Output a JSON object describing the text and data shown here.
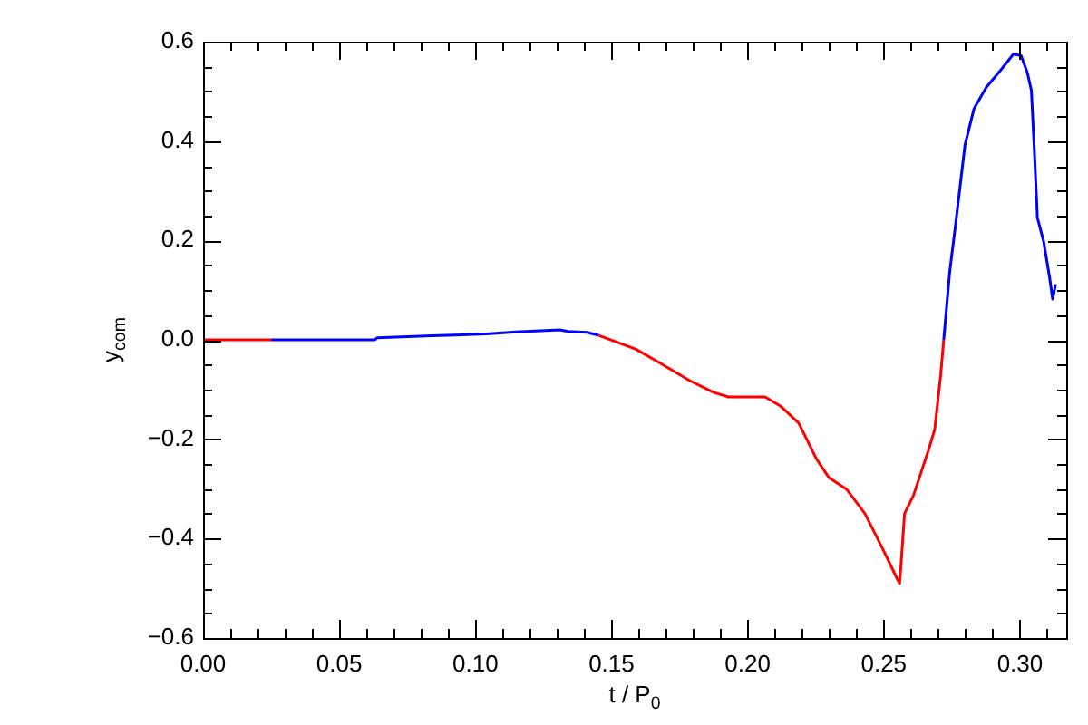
{
  "chart_data": {
    "type": "line",
    "xlabel": "t / P$_{0}$",
    "ylabel": "y$_{com}$",
    "xlim": [
      0,
      0.317
    ],
    "ylim": [
      -0.6,
      0.6
    ],
    "grid": false,
    "legend": false,
    "xticks": [
      {
        "value": 0,
        "label": "0.00"
      },
      {
        "value": 0.01,
        "label": null
      },
      {
        "value": 0.02,
        "label": null
      },
      {
        "value": 0.03,
        "label": null
      },
      {
        "value": 0.04,
        "label": null
      },
      {
        "value": 0.05,
        "label": "0.05"
      },
      {
        "value": 0.06,
        "label": null
      },
      {
        "value": 0.07,
        "label": null
      },
      {
        "value": 0.08,
        "label": null
      },
      {
        "value": 0.09,
        "label": null
      },
      {
        "value": 0.1,
        "label": "0.10"
      },
      {
        "value": 0.11,
        "label": null
      },
      {
        "value": 0.12,
        "label": null
      },
      {
        "value": 0.13,
        "label": null
      },
      {
        "value": 0.14,
        "label": null
      },
      {
        "value": 0.15,
        "label": "0.15"
      },
      {
        "value": 0.16,
        "label": null
      },
      {
        "value": 0.17,
        "label": null
      },
      {
        "value": 0.18,
        "label": null
      },
      {
        "value": 0.19,
        "label": null
      },
      {
        "value": 0.2,
        "label": "0.20"
      },
      {
        "value": 0.21,
        "label": null
      },
      {
        "value": 0.22,
        "label": null
      },
      {
        "value": 0.23,
        "label": null
      },
      {
        "value": 0.24,
        "label": null
      },
      {
        "value": 0.25,
        "label": "0.25"
      },
      {
        "value": 0.26,
        "label": null
      },
      {
        "value": 0.27,
        "label": null
      },
      {
        "value": 0.28,
        "label": null
      },
      {
        "value": 0.29,
        "label": null
      },
      {
        "value": 0.3,
        "label": "0.30"
      },
      {
        "value": 0.31,
        "label": null
      }
    ],
    "yticks": [
      {
        "value": -0.6,
        "label": "−0.6"
      },
      {
        "value": -0.55,
        "label": null
      },
      {
        "value": -0.5,
        "label": null
      },
      {
        "value": -0.45,
        "label": null
      },
      {
        "value": -0.4,
        "label": "−0.4"
      },
      {
        "value": -0.35,
        "label": null
      },
      {
        "value": -0.3,
        "label": null
      },
      {
        "value": -0.25,
        "label": null
      },
      {
        "value": -0.2,
        "label": "−0.2"
      },
      {
        "value": -0.15,
        "label": null
      },
      {
        "value": -0.1,
        "label": null
      },
      {
        "value": -0.05,
        "label": null
      },
      {
        "value": 0,
        "label": "0.0"
      },
      {
        "value": 0.05,
        "label": null
      },
      {
        "value": 0.1,
        "label": null
      },
      {
        "value": 0.15,
        "label": null
      },
      {
        "value": 0.2,
        "label": "0.2"
      },
      {
        "value": 0.25,
        "label": null
      },
      {
        "value": 0.3,
        "label": null
      },
      {
        "value": 0.35,
        "label": null
      },
      {
        "value": 0.4,
        "label": "0.4"
      },
      {
        "value": 0.45,
        "label": null
      },
      {
        "value": 0.5,
        "label": null
      },
      {
        "value": 0.55,
        "label": null
      },
      {
        "value": 0.6,
        "label": "0.6"
      }
    ],
    "series": [
      {
        "color": "#ff0000",
        "x": [
          0,
          0.025
        ],
        "values": [
          0,
          0
        ]
      },
      {
        "color": "#0000ff",
        "x": [
          0.025,
          0.063,
          0.064,
          0.084,
          0.104,
          0.115,
          0.131,
          0.134,
          0.141,
          0.1453
        ],
        "values": [
          0,
          0,
          0.004,
          0.008,
          0.012,
          0.016,
          0.02,
          0.017,
          0.015,
          0.009
        ]
      },
      {
        "color": "#ff0000",
        "x": [
          0.1453,
          0.159,
          0.1676,
          0.1787,
          0.1876,
          0.193,
          0.2064,
          0.212,
          0.2187,
          0.2253,
          0.2298,
          0.2364,
          0.2431,
          0.2498,
          0.2549,
          0.2558,
          0.2564,
          0.2576,
          0.2609,
          0.2664,
          0.2687,
          0.2709,
          0.272
        ],
        "values": [
          0.009,
          -0.019,
          -0.046,
          -0.082,
          -0.106,
          -0.115,
          -0.115,
          -0.133,
          -0.167,
          -0.24,
          -0.277,
          -0.301,
          -0.35,
          -0.423,
          -0.481,
          -0.49,
          -0.447,
          -0.35,
          -0.313,
          -0.222,
          -0.18,
          -0.07,
          0
        ]
      },
      {
        "color": "#0000ff",
        "x": [
          0.272,
          0.2742,
          0.2764,
          0.2798,
          0.2831,
          0.2876,
          0.2931,
          0.2976,
          0.3004,
          0.3027,
          0.3042,
          0.3053,
          0.3064,
          0.3087,
          0.3109,
          0.312,
          0.3131
        ],
        "values": [
          0,
          0.137,
          0.234,
          0.392,
          0.465,
          0.508,
          0.544,
          0.575,
          0.572,
          0.538,
          0.502,
          0.38,
          0.246,
          0.198,
          0.125,
          0.082,
          0.112
        ]
      }
    ]
  }
}
